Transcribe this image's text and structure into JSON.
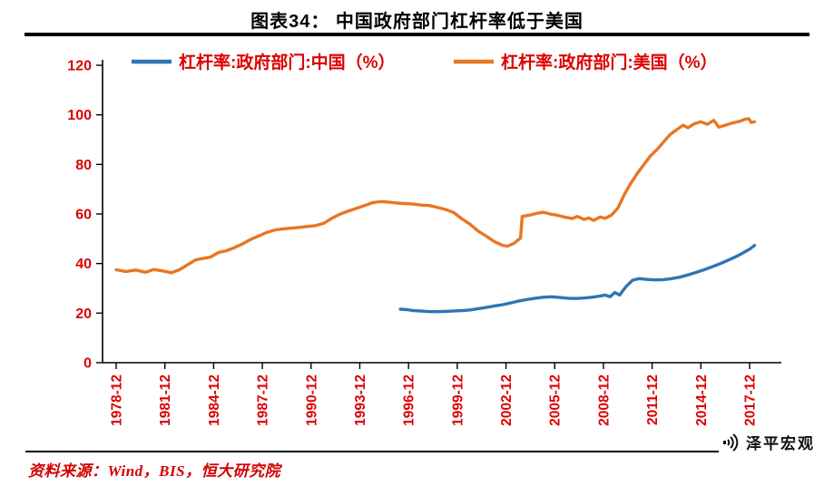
{
  "title": "图表34： 中国政府部门杠杆率低于美国",
  "source": "资料来源：Wind，BIS，恒大研究院",
  "logo": {
    "text": "泽平宏观"
  },
  "colors": {
    "axis_line": "#000000",
    "axis_label": "#dd0000",
    "legend_label": "#dd0000",
    "china_line": "#2e75b6",
    "us_line": "#e87624"
  },
  "chart_data": {
    "type": "line",
    "title": "图表34： 中国政府部门杠杆率低于美国",
    "xlabel": "",
    "ylabel": "",
    "ylim": [
      0,
      120
    ],
    "yticks": [
      0,
      20,
      40,
      60,
      80,
      100,
      120
    ],
    "xtick_labels": [
      "1978-12",
      "1981-12",
      "1984-12",
      "1987-12",
      "1990-12",
      "1993-12",
      "1996-12",
      "1999-12",
      "2002-12",
      "2005-12",
      "2008-12",
      "2011-12",
      "2014-12",
      "2017-12"
    ],
    "grid": false,
    "legend_position": "top",
    "series": [
      {
        "name": "杠杆率:政府部门:中国（%）",
        "color": "#2e75b6",
        "points": [
          [
            1995.5,
            21.6
          ],
          [
            1995.9,
            21.4
          ],
          [
            1996.3,
            21.0
          ],
          [
            1996.8,
            20.8
          ],
          [
            1997.3,
            20.6
          ],
          [
            1997.8,
            20.6
          ],
          [
            1998.3,
            20.7
          ],
          [
            1998.8,
            20.9
          ],
          [
            1999.3,
            21.0
          ],
          [
            1999.8,
            21.3
          ],
          [
            2000.3,
            21.8
          ],
          [
            2000.8,
            22.3
          ],
          [
            2001.3,
            22.9
          ],
          [
            2001.8,
            23.4
          ],
          [
            2002.3,
            24.1
          ],
          [
            2002.8,
            24.9
          ],
          [
            2003.3,
            25.5
          ],
          [
            2003.8,
            26.0
          ],
          [
            2004.3,
            26.4
          ],
          [
            2004.8,
            26.6
          ],
          [
            2005.3,
            26.3
          ],
          [
            2005.8,
            26.0
          ],
          [
            2006.3,
            25.9
          ],
          [
            2006.8,
            26.1
          ],
          [
            2007.3,
            26.4
          ],
          [
            2007.8,
            26.9
          ],
          [
            2008.1,
            27.3
          ],
          [
            2008.4,
            26.6
          ],
          [
            2008.7,
            28.3
          ],
          [
            2009.0,
            27.3
          ],
          [
            2009.4,
            30.8
          ],
          [
            2009.8,
            33.3
          ],
          [
            2010.2,
            33.9
          ],
          [
            2010.7,
            33.6
          ],
          [
            2011.2,
            33.4
          ],
          [
            2011.7,
            33.5
          ],
          [
            2012.2,
            33.9
          ],
          [
            2012.7,
            34.5
          ],
          [
            2013.2,
            35.4
          ],
          [
            2013.7,
            36.4
          ],
          [
            2014.2,
            37.5
          ],
          [
            2014.7,
            38.7
          ],
          [
            2015.2,
            40.0
          ],
          [
            2015.7,
            41.4
          ],
          [
            2016.2,
            42.9
          ],
          [
            2016.6,
            44.3
          ],
          [
            2017.0,
            45.8
          ],
          [
            2017.3,
            47.3
          ]
        ]
      },
      {
        "name": "杠杆率:政府部门:美国（%）",
        "color": "#e87624",
        "points": [
          [
            1978,
            37.5
          ],
          [
            1978.6,
            36.8
          ],
          [
            1979.2,
            37.4
          ],
          [
            1979.8,
            36.5
          ],
          [
            1980.3,
            37.6
          ],
          [
            1980.9,
            37.0
          ],
          [
            1981.4,
            36.3
          ],
          [
            1981.9,
            37.5
          ],
          [
            1982.4,
            39.5
          ],
          [
            1982.9,
            41.5
          ],
          [
            1983.3,
            42.0
          ],
          [
            1983.8,
            42.6
          ],
          [
            1984.3,
            44.5
          ],
          [
            1984.8,
            45.2
          ],
          [
            1985.3,
            46.5
          ],
          [
            1985.8,
            48.0
          ],
          [
            1986.3,
            49.8
          ],
          [
            1986.8,
            51.2
          ],
          [
            1987.3,
            52.6
          ],
          [
            1987.8,
            53.6
          ],
          [
            1988.3,
            54.0
          ],
          [
            1988.8,
            54.3
          ],
          [
            1989.3,
            54.6
          ],
          [
            1989.8,
            55.0
          ],
          [
            1990.3,
            55.3
          ],
          [
            1990.8,
            56.3
          ],
          [
            1991.3,
            58.3
          ],
          [
            1991.8,
            60.0
          ],
          [
            1992.3,
            61.2
          ],
          [
            1992.8,
            62.3
          ],
          [
            1993.3,
            63.4
          ],
          [
            1993.8,
            64.6
          ],
          [
            1994.3,
            65.0
          ],
          [
            1994.8,
            64.8
          ],
          [
            1995.3,
            64.4
          ],
          [
            1995.8,
            64.2
          ],
          [
            1996.3,
            64.0
          ],
          [
            1996.8,
            63.6
          ],
          [
            1997.3,
            63.4
          ],
          [
            1997.8,
            62.6
          ],
          [
            1998.3,
            61.8
          ],
          [
            1998.8,
            60.5
          ],
          [
            1999.3,
            58.0
          ],
          [
            1999.8,
            55.8
          ],
          [
            2000.3,
            53.0
          ],
          [
            2000.8,
            51.0
          ],
          [
            2001.3,
            48.8
          ],
          [
            2001.8,
            47.3
          ],
          [
            2002.1,
            47.0
          ],
          [
            2002.5,
            48.2
          ],
          [
            2002.9,
            50.3
          ],
          [
            2003.0,
            59.0
          ],
          [
            2003.5,
            59.6
          ],
          [
            2004.0,
            60.4
          ],
          [
            2004.3,
            60.7
          ],
          [
            2004.8,
            59.9
          ],
          [
            2005.2,
            59.4
          ],
          [
            2005.7,
            58.6
          ],
          [
            2006.1,
            58.2
          ],
          [
            2006.4,
            59.0
          ],
          [
            2006.8,
            57.8
          ],
          [
            2007.1,
            58.4
          ],
          [
            2007.4,
            57.4
          ],
          [
            2007.8,
            58.8
          ],
          [
            2008.1,
            58.2
          ],
          [
            2008.5,
            59.6
          ],
          [
            2008.9,
            62.5
          ],
          [
            2009.3,
            68.0
          ],
          [
            2009.7,
            72.5
          ],
          [
            2010.1,
            76.5
          ],
          [
            2010.5,
            80.0
          ],
          [
            2010.9,
            83.5
          ],
          [
            2011.3,
            86.0
          ],
          [
            2011.7,
            89.0
          ],
          [
            2012.1,
            92.0
          ],
          [
            2012.5,
            94.0
          ],
          [
            2012.9,
            95.8
          ],
          [
            2013.2,
            94.8
          ],
          [
            2013.6,
            96.4
          ],
          [
            2014.0,
            97.2
          ],
          [
            2014.4,
            96.2
          ],
          [
            2014.8,
            97.8
          ],
          [
            2015.1,
            95.0
          ],
          [
            2015.5,
            95.8
          ],
          [
            2016.0,
            96.8
          ],
          [
            2016.4,
            97.4
          ],
          [
            2016.7,
            98.2
          ],
          [
            2016.95,
            98.4
          ],
          [
            2017.1,
            96.9
          ],
          [
            2017.3,
            97.2
          ]
        ]
      }
    ]
  }
}
